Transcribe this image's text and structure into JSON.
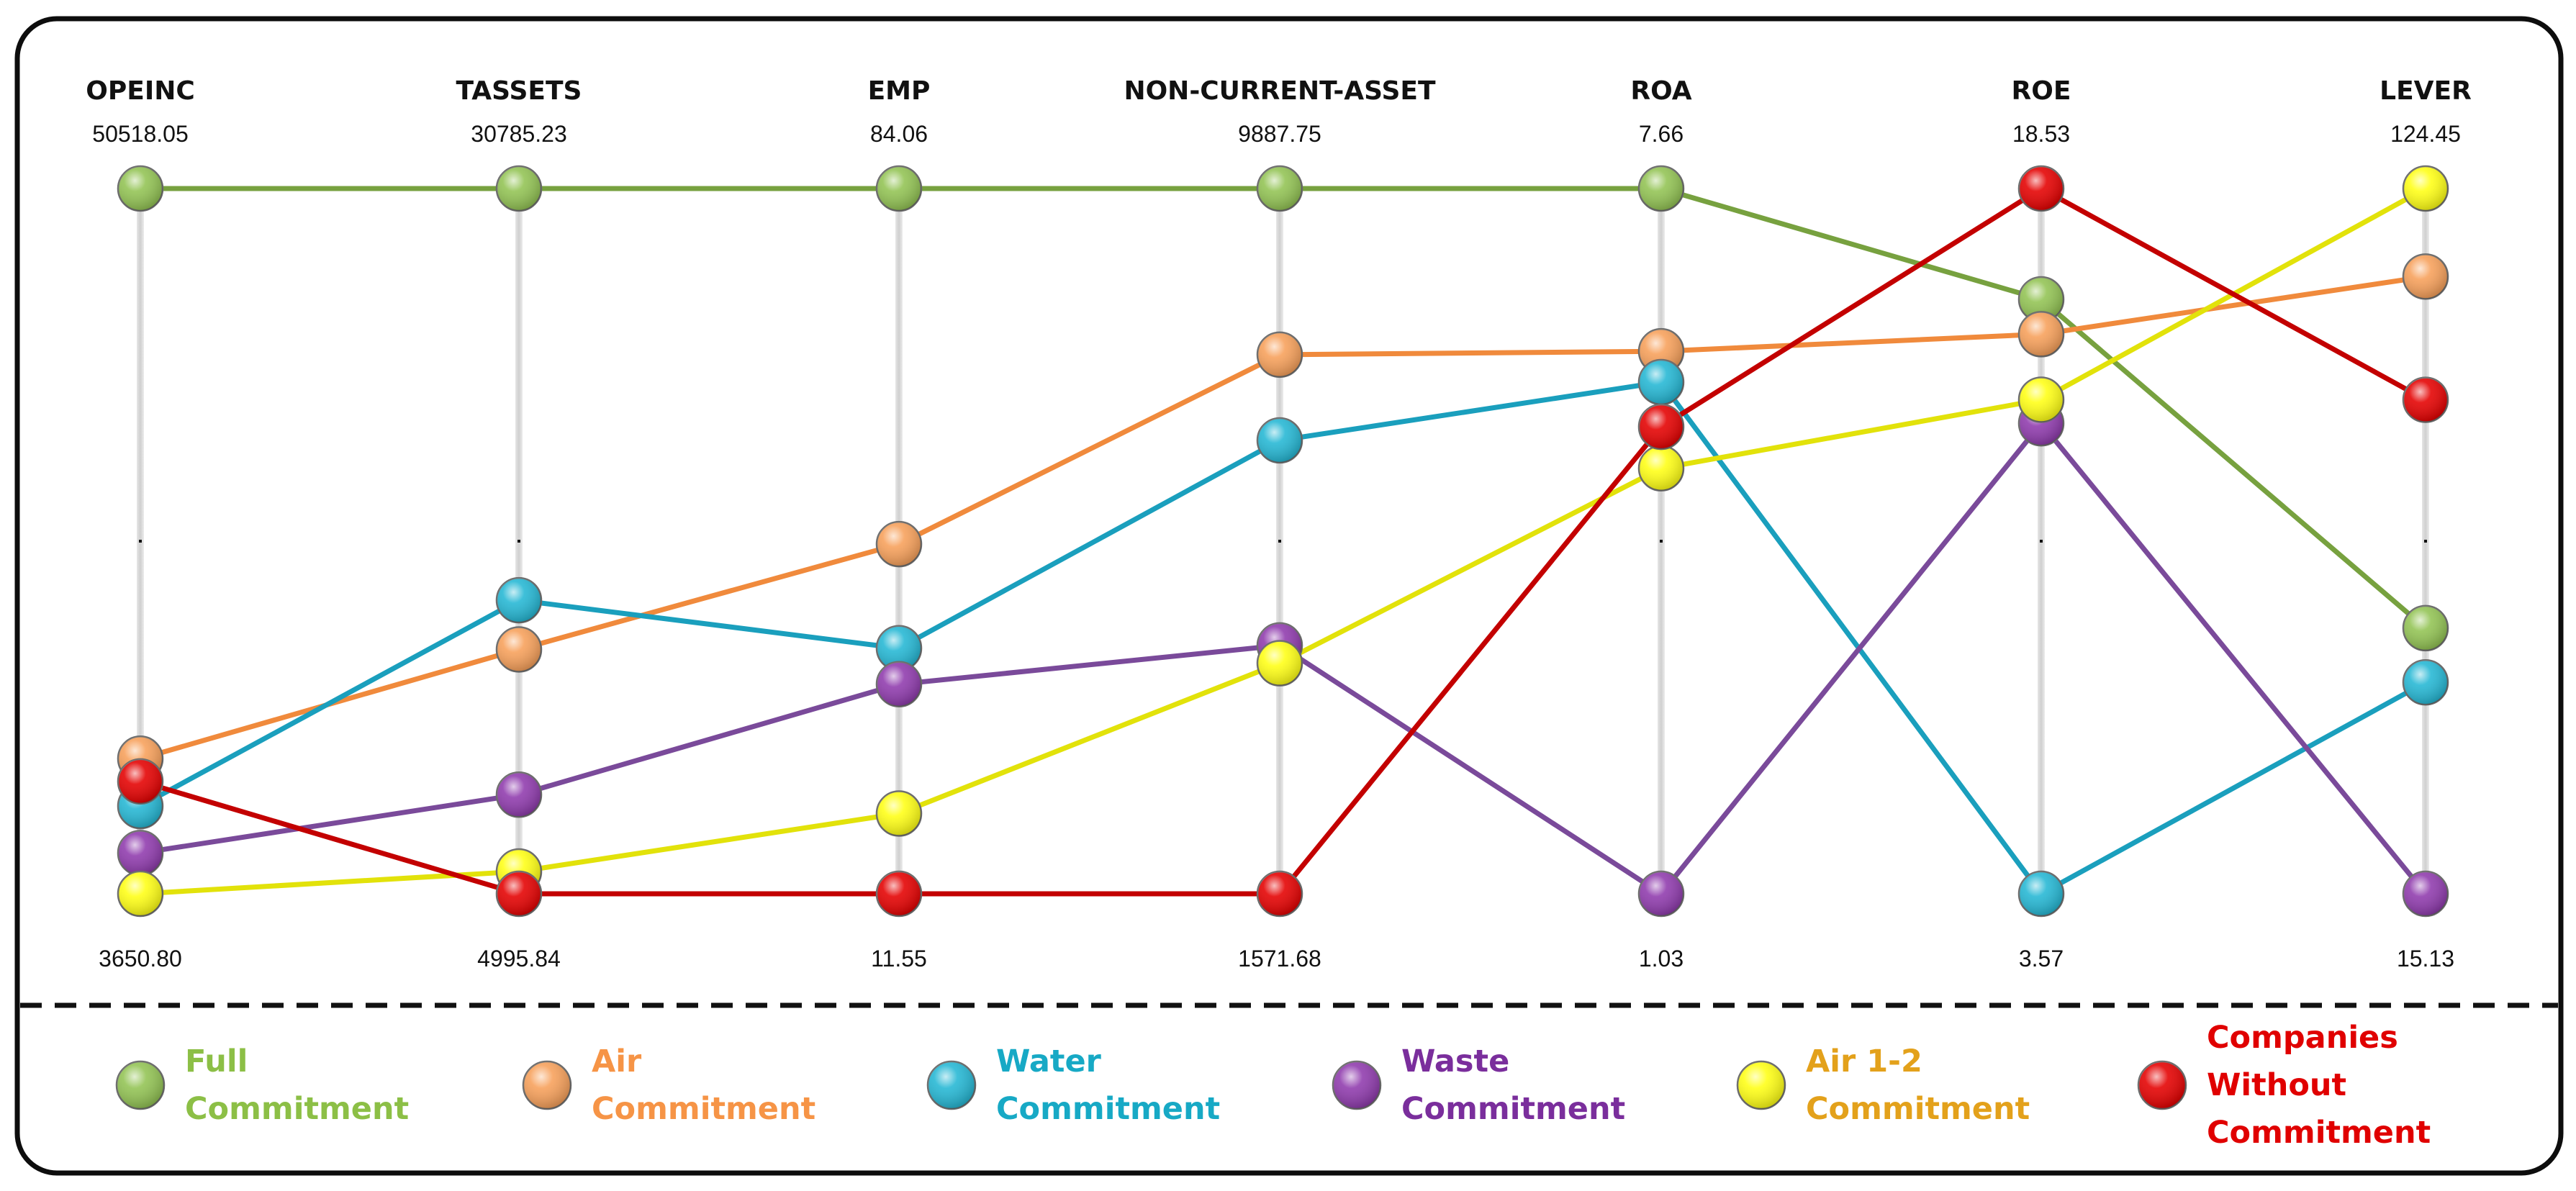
{
  "chart_data": {
    "type": "parallel-coordinates",
    "axes": [
      {
        "name": "OPEINC",
        "max": 50518.05,
        "min": 3650.8,
        "max_label": "50518.05",
        "min_label": "3650.80"
      },
      {
        "name": "TASSETS",
        "max": 30785.23,
        "min": 4995.84,
        "max_label": "30785.23",
        "min_label": "4995.84"
      },
      {
        "name": "EMP",
        "max": 84.06,
        "min": 11.55,
        "max_label": "84.06",
        "min_label": "11.55"
      },
      {
        "name": "NON-CURRENT-ASSET",
        "max": 9887.75,
        "min": 1571.68,
        "max_label": "9887.75",
        "min_label": "1571.68"
      },
      {
        "name": "ROA",
        "max": 7.66,
        "min": 1.03,
        "max_label": "7.66",
        "min_label": "1.03"
      },
      {
        "name": "ROE",
        "max": 18.53,
        "min": 3.57,
        "max_label": "18.53",
        "min_label": "3.57"
      },
      {
        "name": "LEVER",
        "max": 124.45,
        "min": 15.13,
        "max_label": "124.45",
        "min_label": "15.13"
      }
    ],
    "series": [
      {
        "name": "Full Commitment",
        "line_color": "#77a13f",
        "fill": "#92c353",
        "values": [
          50518.05,
          30785.23,
          84.06,
          9887.75,
          7.66,
          16.18,
          56.3
        ]
      },
      {
        "name": "Air Commitment",
        "line_color": "#f08a3c",
        "fill": "#f7a05a",
        "values": [
          12630,
          13930,
          47.5,
          7929,
          6.13,
          15.44,
          110.8
        ]
      },
      {
        "name": "Water Commitment",
        "line_color": "#1a9fbd",
        "fill": "#24b7d4",
        "values": [
          9480,
          15730,
          36.8,
          6918,
          5.84,
          3.57,
          47.9
        ]
      },
      {
        "name": "Waste Commitment",
        "line_color": "#7a4a9a",
        "fill": "#8f3aad",
        "values": [
          6360,
          8620,
          33.1,
          4500,
          1.03,
          13.55,
          15.13
        ]
      },
      {
        "name": "Air 1-2 Commitment",
        "line_color": "#e2e20a",
        "fill": "#ffff14",
        "values": [
          3650.8,
          5810,
          19.8,
          4290,
          5.03,
          14.05,
          124.45
        ]
      },
      {
        "name": "Companies Without Commitment",
        "line_color": "#c30000",
        "fill": "#e40000",
        "values": [
          11120,
          4995.84,
          11.55,
          1571.68,
          5.42,
          18.53,
          91.7
        ]
      }
    ],
    "legend": {
      "placement": "bottom"
    },
    "grid": false
  },
  "legend_items": [
    {
      "lines": [
        "Full",
        "Commitment"
      ],
      "color": "#8cbf46",
      "fill": "#92c353"
    },
    {
      "lines": [
        "Air",
        "Commitment"
      ],
      "color": "#f69446",
      "fill": "#f7a05a"
    },
    {
      "lines": [
        "Water",
        "Commitment"
      ],
      "color": "#17a9c5",
      "fill": "#24b7d4"
    },
    {
      "lines": [
        "Waste",
        "Commitment"
      ],
      "color": "#7a2e9c",
      "fill": "#8f3aad"
    },
    {
      "lines": [
        "Air 1-2",
        "Commitment"
      ],
      "color": "#e3a11b",
      "fill": "#ffff14"
    },
    {
      "lines": [
        "Companies",
        "Without",
        "Commitment"
      ],
      "color": "#e00000",
      "fill": "#e40000"
    }
  ]
}
